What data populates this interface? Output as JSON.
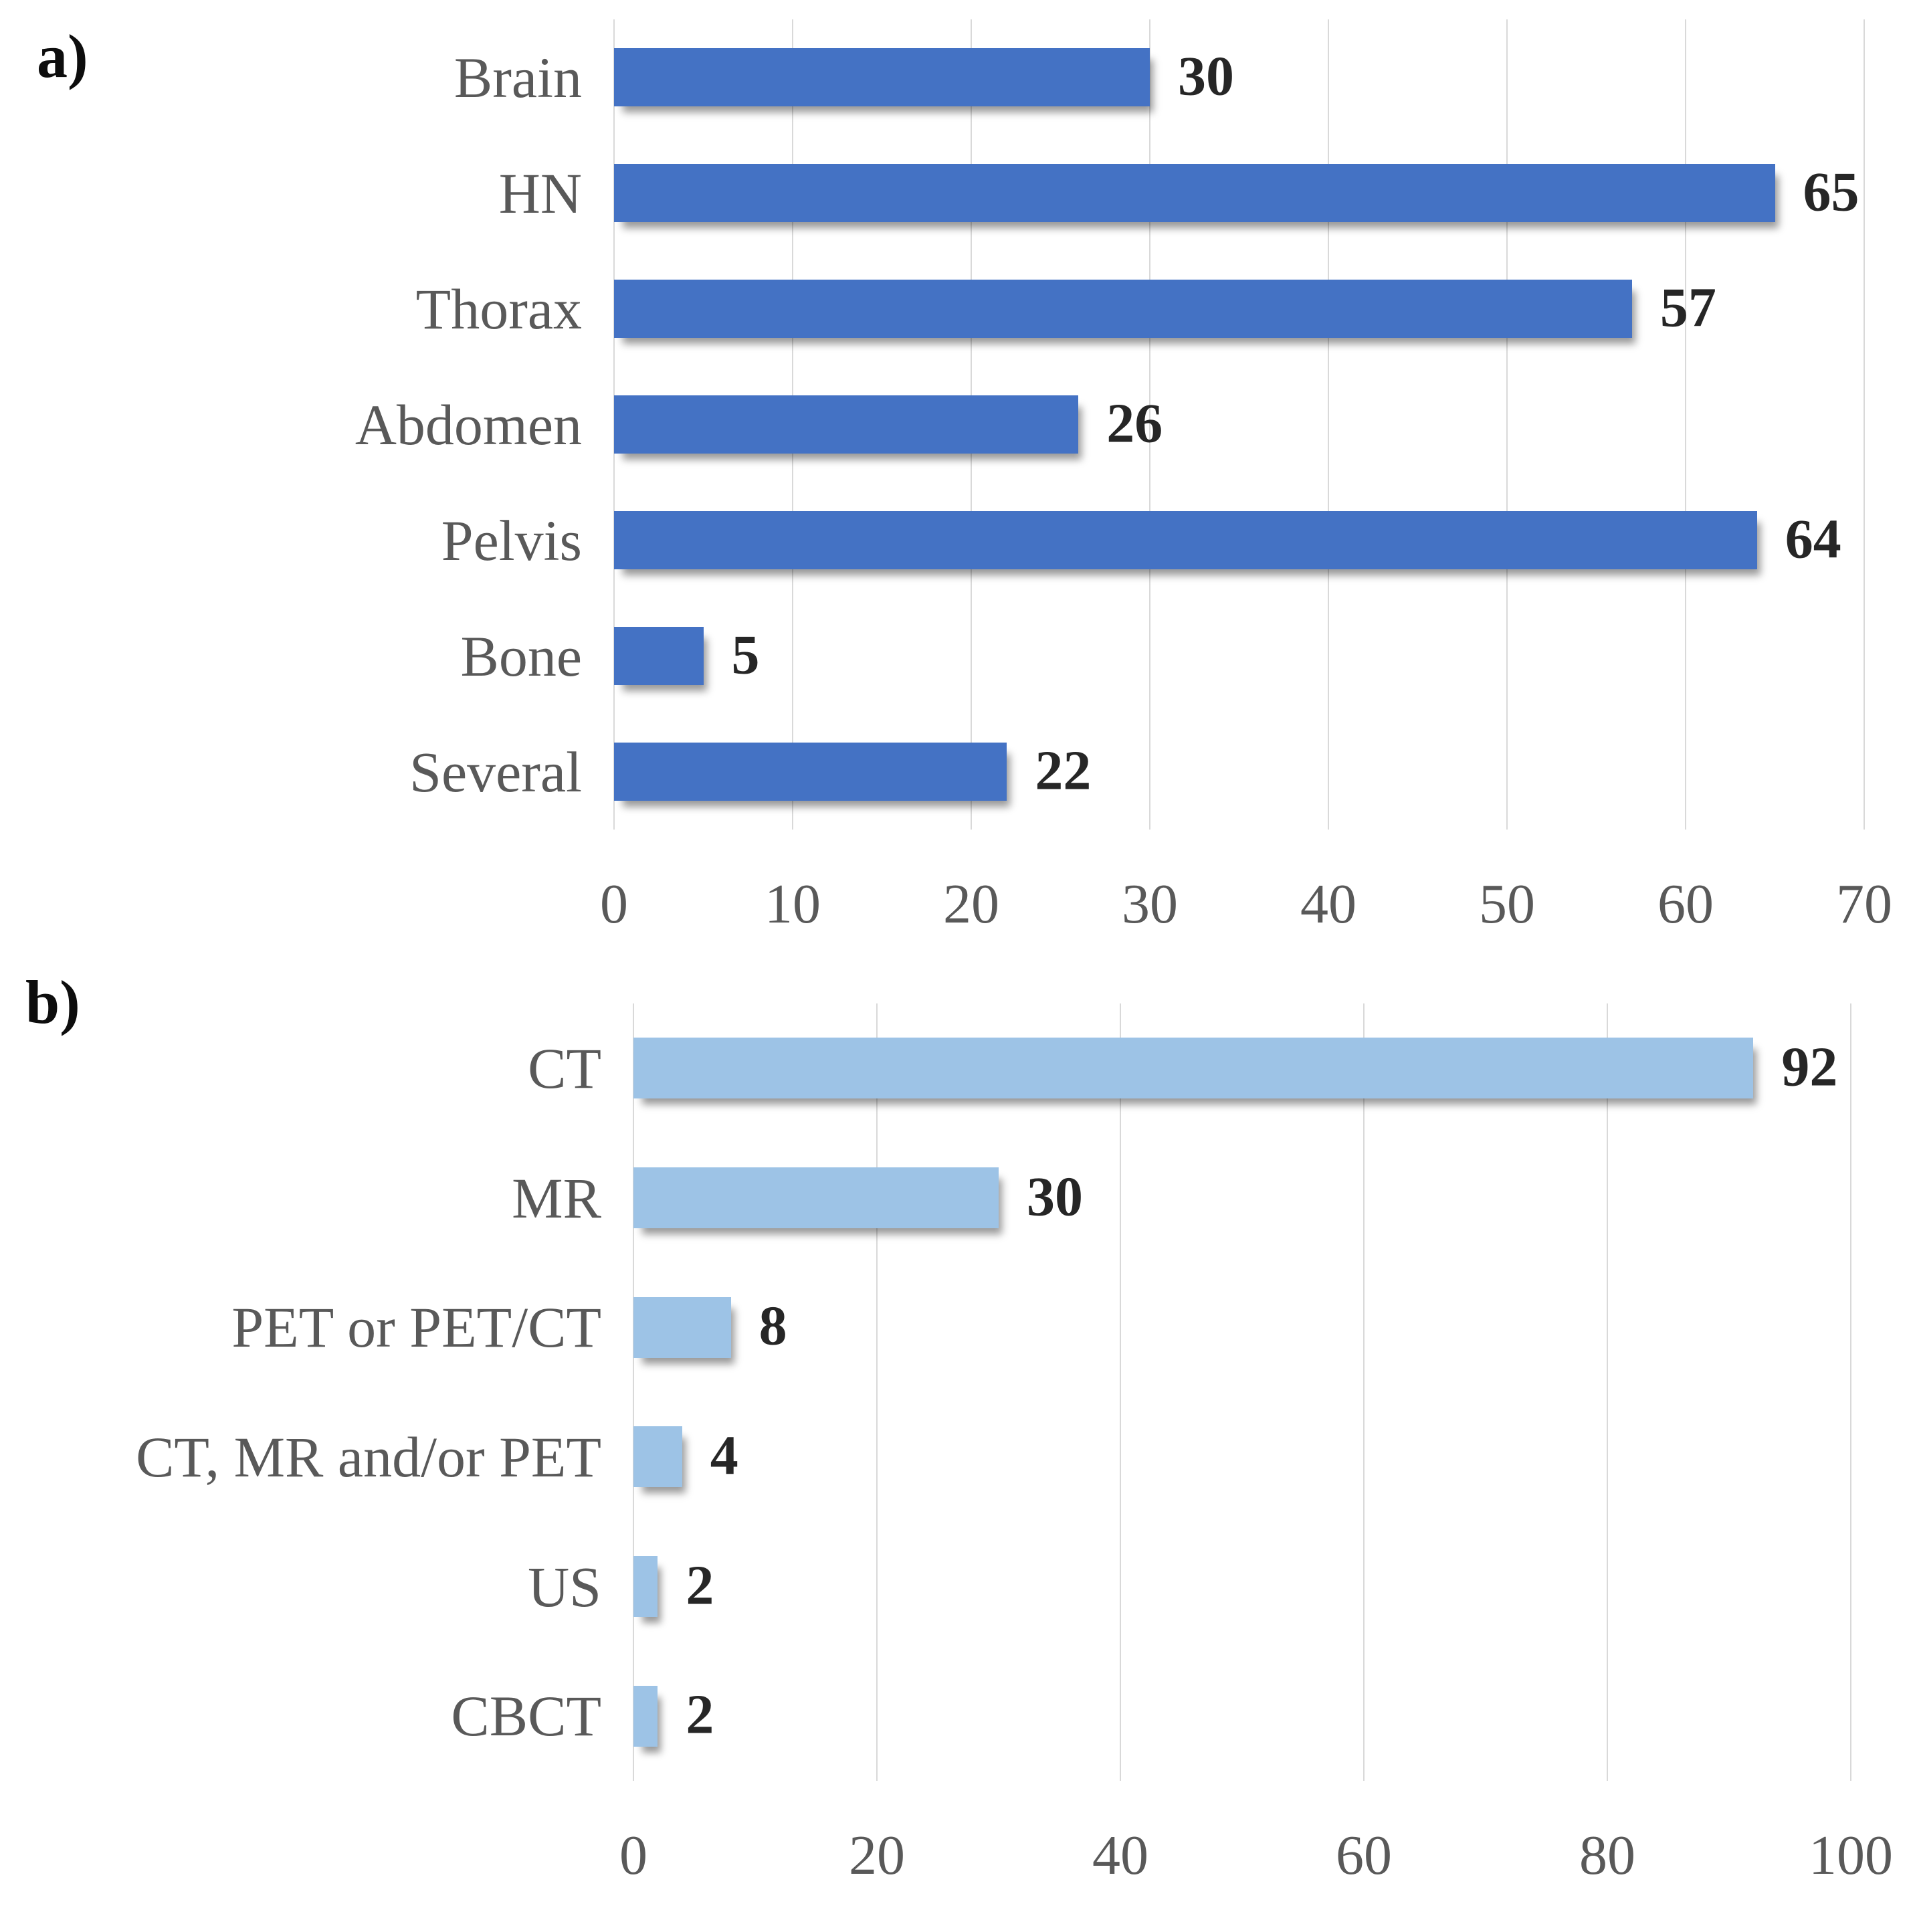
{
  "figure": {
    "background_color": "#ffffff",
    "text_color_labels": "#595959",
    "text_color_values": "#262626",
    "gridline_color": "#d9d9d9"
  },
  "chart_data": [
    {
      "type": "bar",
      "orientation": "horizontal",
      "panel_label": "a)",
      "title": "",
      "xlabel": "",
      "ylabel": "",
      "categories": [
        "Brain",
        "HN",
        "Thorax",
        "Abdomen",
        "Pelvis",
        "Bone",
        "Several"
      ],
      "values": [
        30,
        65,
        57,
        26,
        64,
        5,
        22
      ],
      "value_labels": [
        "30",
        "65",
        "57",
        "26",
        "64",
        "5",
        "22"
      ],
      "xlim": [
        0,
        70
      ],
      "xticks": [
        "0",
        "10",
        "20",
        "30",
        "40",
        "50",
        "60",
        "70"
      ],
      "grid": true,
      "legend": false,
      "bar_color": "#4472C4"
    },
    {
      "type": "bar",
      "orientation": "horizontal",
      "panel_label": "b)",
      "title": "",
      "xlabel": "",
      "ylabel": "",
      "categories": [
        "CT",
        "MR",
        "PET or PET/CT",
        "CT, MR and/or PET",
        "US",
        "CBCT"
      ],
      "values": [
        92,
        30,
        8,
        4,
        2,
        2
      ],
      "value_labels": [
        "92",
        "30",
        "8",
        "4",
        "2",
        "2"
      ],
      "xlim": [
        0,
        100
      ],
      "xticks": [
        "0",
        "20",
        "40",
        "60",
        "80",
        "100"
      ],
      "grid": true,
      "legend": false,
      "bar_color": "#9DC3E6"
    }
  ]
}
